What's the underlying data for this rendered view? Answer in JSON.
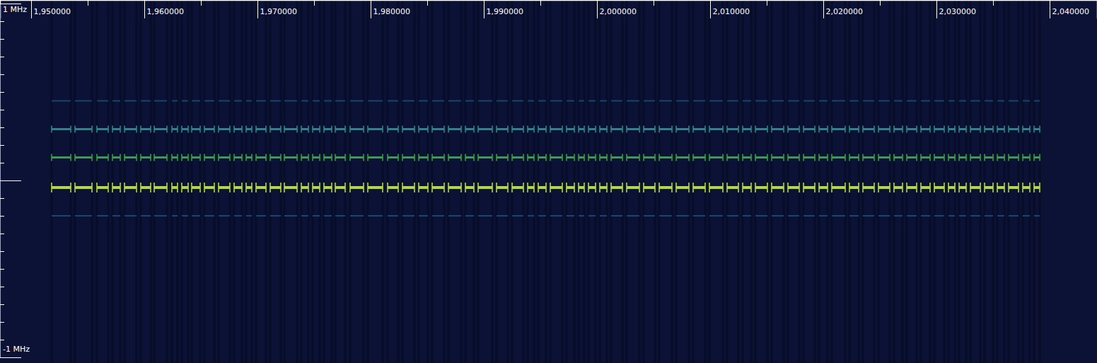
{
  "chart_data": {
    "type": "spectrogram",
    "xlim": [
      1947250,
      2044187.5
    ],
    "xticks": [
      {
        "value": 1950000,
        "label": "1,950000"
      },
      {
        "value": 1960000,
        "label": "1,960000"
      },
      {
        "value": 1970000,
        "label": "1,970000"
      },
      {
        "value": 1980000,
        "label": "1,980000"
      },
      {
        "value": 1990000,
        "label": "1,990000"
      },
      {
        "value": 2000000,
        "label": "2,000000"
      },
      {
        "value": 2010000,
        "label": "2,010000"
      },
      {
        "value": 2020000,
        "label": "2,020000"
      },
      {
        "value": 2030000,
        "label": "2,030000"
      },
      {
        "value": 2040000,
        "label": "2,040000"
      }
    ],
    "x_minor_ticks": [
      1955000,
      1965000,
      1975000,
      1985000,
      1995000,
      2005000,
      2015000,
      2025000,
      2035000
    ],
    "ylim": [
      -1,
      1
    ],
    "yticks": [
      {
        "value": -1,
        "label": "-1 MHz"
      },
      {
        "value": 1,
        "label": "1 MHz"
      }
    ],
    "y_minor_ticks": [
      -0.9,
      -0.8,
      -0.7,
      -0.6,
      -0.5,
      -0.4,
      -0.3,
      -0.2,
      -0.1,
      0,
      0.1,
      0.2,
      0.3,
      0.4,
      0.5,
      0.6,
      0.7,
      0.8,
      0.9
    ],
    "tones": [
      {
        "frequency": 0.45,
        "color": "#1d557e"
      },
      {
        "frequency": 0.29,
        "color": "#1f8c8a"
      },
      {
        "frequency": 0.13,
        "color": "#2aa83a"
      },
      {
        "frequency": -0.04,
        "color": "#b5dc2c"
      },
      {
        "frequency": -0.2,
        "color": "#1d5a82"
      }
    ],
    "pulse_start": [
      1951812,
      1953875,
      1955812,
      1957187,
      1958250,
      1959687,
      1960875,
      1962437,
      1963312,
      1964187,
      1965312,
      1966562,
      1967937,
      1969000,
      1969875,
      1971125,
      1972375,
      1973875,
      1974875,
      1975875,
      1976875,
      1978187,
      1979750,
      1981500,
      1982812,
      1984250,
      1985437,
      1986875,
      1988375,
      1989500,
      1991125,
      1992500,
      1993875,
      1994812,
      1995875,
      1997312,
      1998375,
      1999250,
      2000250,
      2001250,
      2002625,
      2004125,
      2005500,
      2007000,
      2008500,
      2009937,
      2011500,
      2012875,
      2014000,
      2015437,
      2016875,
      2018250,
      2019625,
      2020750,
      2022312,
      2023500,
      2024875,
      2026250,
      2027375,
      2028625,
      2029812,
      2031062,
      2032000,
      2033000,
      2034250,
      2035375,
      2036375,
      2037625,
      2038625
    ],
    "pulse_end": [
      1953500,
      1955375,
      1956812,
      1957875,
      1959312,
      1960562,
      1962000,
      1962937,
      1963875,
      1964937,
      1966187,
      1967562,
      1968625,
      1969500,
      1970750,
      1972062,
      1973500,
      1974500,
      1975500,
      1976562,
      1977750,
      1979375,
      1981062,
      1982437,
      1983875,
      1985062,
      1986500,
      1988000,
      1989125,
      1990750,
      1992125,
      1993500,
      1994437,
      1995500,
      1996937,
      1998000,
      1998875,
      1999875,
      2000875,
      2002250,
      2003750,
      2005125,
      2006625,
      2008125,
      2009562,
      2011125,
      2012500,
      2013625,
      2015062,
      2016500,
      2017875,
      2019250,
      2020375,
      2021937,
      2023125,
      2024500,
      2025875,
      2027000,
      2028250,
      2029437,
      2030687,
      2031625,
      2032625,
      2033875,
      2035000,
      2036000,
      2037250,
      2038250,
      2039125
    ]
  }
}
